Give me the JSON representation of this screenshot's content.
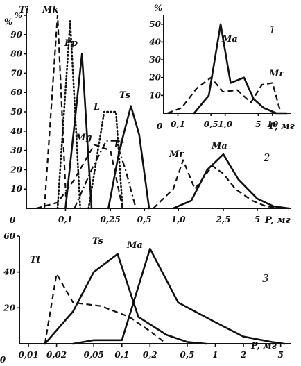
{
  "chart_data": [
    {
      "type": "line",
      "panel_label": "1",
      "ylabel": "%",
      "xlabel": "P, мг",
      "x_scale": "log",
      "xlim": [
        0.05,
        25
      ],
      "ylim": [
        0,
        55
      ],
      "x_ticks": [
        {
          "v": 0.1,
          "label": "0,1"
        },
        {
          "v": 0.5,
          "label": "0,5"
        },
        {
          "v": 1.0,
          "label": "1,0"
        },
        {
          "v": 5,
          "label": "5"
        },
        {
          "v": 10,
          "label": "10"
        }
      ],
      "x_origin_label": "0",
      "y_ticks": [
        {
          "v": 10,
          "label": "10"
        },
        {
          "v": 20,
          "label": "20"
        },
        {
          "v": 30,
          "label": "30"
        },
        {
          "v": 40,
          "label": "40"
        },
        {
          "v": 50,
          "label": "50"
        }
      ],
      "series": [
        {
          "name": "Ma",
          "style": "solid",
          "x": [
            0.22,
            0.45,
            0.8,
            1.3,
            2.5,
            4.0,
            6.5,
            12,
            20
          ],
          "y": [
            0,
            10,
            50,
            17,
            20,
            8,
            3,
            0,
            0
          ]
        },
        {
          "name": "Mr",
          "style": "dashed",
          "x": [
            0.06,
            0.12,
            0.25,
            0.5,
            0.9,
            1.8,
            3.5,
            6.0,
            10,
            15
          ],
          "y": [
            0,
            3,
            14,
            20,
            12,
            13,
            6,
            16,
            17,
            0
          ]
        }
      ]
    },
    {
      "type": "line",
      "panel_label": "2",
      "ylabel": "%",
      "xlabel": "P, мг",
      "x_scale": "log",
      "xlim": [
        0.045,
        10
      ],
      "ylim": [
        0,
        100
      ],
      "x_ticks": [
        {
          "v": 0.1,
          "label": "0,1"
        },
        {
          "v": 0.25,
          "label": "0,25"
        },
        {
          "v": 0.5,
          "label": "0,5"
        },
        {
          "v": 1.0,
          "label": "1,0"
        },
        {
          "v": 2.5,
          "label": "2,5"
        },
        {
          "v": 5,
          "label": "5"
        }
      ],
      "x_origin_label": "0",
      "y_ticks": [
        {
          "v": 10,
          "label": "10"
        },
        {
          "v": 20,
          "label": "20"
        },
        {
          "v": 30,
          "label": "30"
        },
        {
          "v": 40,
          "label": "40"
        },
        {
          "v": 50,
          "label": "50"
        },
        {
          "v": 60,
          "label": "60"
        },
        {
          "v": 70,
          "label": "70"
        },
        {
          "v": 80,
          "label": "80"
        },
        {
          "v": 90,
          "label": "90"
        },
        {
          "v": 100,
          "label": "%"
        }
      ],
      "series": [
        {
          "name": "Ti",
          "style": "dashed",
          "x": [
            0.065,
            0.085,
            0.102
          ],
          "y": [
            0,
            100,
            0
          ]
        },
        {
          "name": "Mk",
          "style": "dotted",
          "x": [
            0.085,
            0.11,
            0.135
          ],
          "y": [
            0,
            97,
            0
          ]
        },
        {
          "name": "Pp",
          "style": "solid",
          "x": [
            0.1,
            0.14,
            0.17
          ],
          "y": [
            0,
            80,
            0
          ]
        },
        {
          "name": "Mg",
          "style": "dashed",
          "x": [
            0.055,
            0.085,
            0.12,
            0.18,
            0.25,
            0.32
          ],
          "y": [
            0,
            3,
            15,
            33,
            30,
            0
          ]
        },
        {
          "name": "L",
          "style": "dotted",
          "x": [
            0.16,
            0.22,
            0.28,
            0.32
          ],
          "y": [
            0,
            50,
            50,
            0
          ]
        },
        {
          "name": "Tt",
          "style": "dash-dot",
          "x": [
            0.12,
            0.17,
            0.23,
            0.28,
            0.34,
            0.42
          ],
          "y": [
            0,
            20,
            35,
            35,
            20,
            0
          ]
        },
        {
          "name": "Ts",
          "style": "solid",
          "x": [
            0.24,
            0.3,
            0.38,
            0.45,
            0.55
          ],
          "y": [
            0,
            30,
            53,
            38,
            0
          ]
        },
        {
          "name": "Mr",
          "style": "dashed",
          "x": [
            0.6,
            0.9,
            1.1,
            1.4,
            2.0,
            2.5,
            3.2,
            4.5,
            6.0,
            8.5
          ],
          "y": [
            0,
            10,
            25,
            10,
            22,
            18,
            10,
            4,
            1,
            0
          ]
        },
        {
          "name": "Ma",
          "style": "solid",
          "x": [
            0.9,
            1.3,
            1.8,
            2.5,
            3.4,
            5.0,
            7.0,
            9.5
          ],
          "y": [
            0,
            4,
            20,
            28,
            15,
            5,
            1,
            0
          ]
        }
      ]
    },
    {
      "type": "line",
      "panel_label": "3",
      "ylabel": "",
      "xlabel": "P, мг",
      "x_scale": "log",
      "xlim": [
        0.008,
        6.5
      ],
      "ylim": [
        0,
        60
      ],
      "x_ticks": [
        {
          "v": 0.01,
          "label": "0,01"
        },
        {
          "v": 0.02,
          "label": "0,02"
        },
        {
          "v": 0.05,
          "label": "0,05"
        },
        {
          "v": 0.1,
          "label": "0,1"
        },
        {
          "v": 0.2,
          "label": "0,2"
        },
        {
          "v": 0.5,
          "label": "0,5"
        },
        {
          "v": 1,
          "label": "1"
        },
        {
          "v": 2,
          "label": "2"
        },
        {
          "v": 5,
          "label": "5"
        }
      ],
      "x_origin_label": "0",
      "y_ticks": [
        {
          "v": 20,
          "label": "20"
        },
        {
          "v": 40,
          "label": "40"
        },
        {
          "v": 60,
          "label": "60"
        }
      ],
      "series": [
        {
          "name": "Tt",
          "style": "dashed",
          "x": [
            0.015,
            0.02,
            0.03,
            0.06,
            0.12,
            0.2,
            0.3
          ],
          "y": [
            0,
            39,
            23,
            21,
            15,
            7,
            0
          ]
        },
        {
          "name": "Ts",
          "style": "solid",
          "x": [
            0.015,
            0.03,
            0.05,
            0.09,
            0.15,
            0.3,
            0.5,
            0.8
          ],
          "y": [
            0,
            18,
            40,
            50,
            15,
            5,
            1,
            0
          ]
        },
        {
          "name": "Ma",
          "style": "solid",
          "x": [
            0.03,
            0.05,
            0.1,
            0.2,
            0.4,
            1.0,
            2.0,
            4.0,
            5.5
          ],
          "y": [
            0,
            2,
            2,
            53,
            23,
            12,
            4,
            1,
            0
          ]
        }
      ]
    }
  ]
}
